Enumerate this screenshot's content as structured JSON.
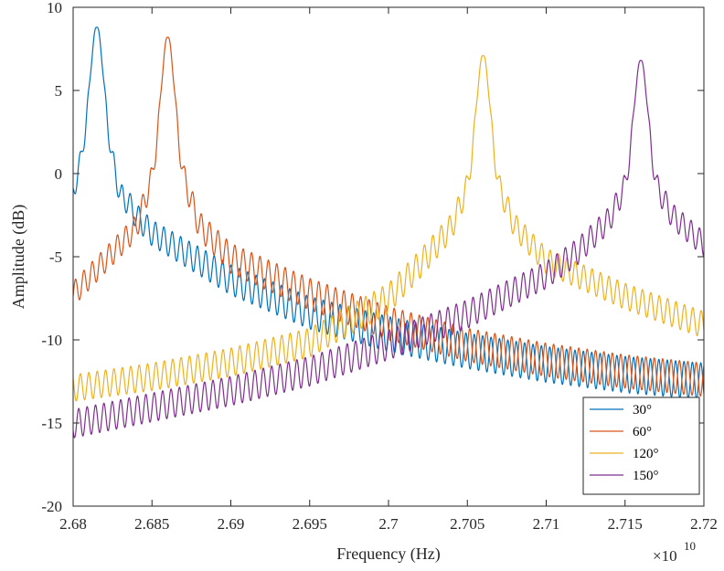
{
  "chart_data": {
    "type": "line",
    "xlabel": "Frequency (Hz)",
    "ylabel": "Amplitude (dB)",
    "x_multiplier_label": "×10",
    "x_multiplier_exponent": "10",
    "xlim": [
      2.68,
      2.72
    ],
    "ylim": [
      -20,
      10
    ],
    "xticks": [
      "2.68",
      "2.685",
      "2.69",
      "2.695",
      "2.7",
      "2.705",
      "2.71",
      "2.715",
      "2.72"
    ],
    "yticks": [
      "10",
      "5",
      "0",
      "-5",
      "-10",
      "-15",
      "-20"
    ],
    "grid": false,
    "legend_position": "bottom-right",
    "x_period": 0.000532,
    "series": [
      {
        "name": "30°",
        "color": "#0072BD",
        "peak_x": 2.6815,
        "peak_y": 8.8,
        "envelope": [
          [
            2.68,
            -0.5
          ],
          [
            2.6805,
            1.5
          ],
          [
            2.6815,
            8.8
          ],
          [
            2.6825,
            1.5
          ],
          [
            2.683,
            -0.6
          ],
          [
            2.6835,
            -1.0
          ],
          [
            2.684,
            -1.8
          ],
          [
            2.685,
            -2.8
          ],
          [
            2.69,
            -5.5
          ],
          [
            2.695,
            -7.4
          ],
          [
            2.7,
            -8.6
          ],
          [
            2.705,
            -9.6
          ],
          [
            2.71,
            -10.4
          ],
          [
            2.715,
            -11.0
          ],
          [
            2.72,
            -11.4
          ]
        ],
        "ripple": [
          [
            2.68,
            1.3
          ],
          [
            2.684,
            1.5
          ],
          [
            2.69,
            1.8
          ],
          [
            2.7,
            2.1
          ],
          [
            2.72,
            2.2
          ]
        ]
      },
      {
        "name": "60°",
        "color": "#D95319",
        "peak_x": 2.686,
        "peak_y": 8.2,
        "envelope": [
          [
            2.68,
            -6.5
          ],
          [
            2.683,
            -3.5
          ],
          [
            2.684,
            -2.5
          ],
          [
            2.685,
            0.5
          ],
          [
            2.686,
            8.2
          ],
          [
            2.687,
            0.6
          ],
          [
            2.688,
            -2.3
          ],
          [
            2.69,
            -4.2
          ],
          [
            2.695,
            -6.3
          ],
          [
            2.7,
            -8.0
          ],
          [
            2.705,
            -9.3
          ],
          [
            2.71,
            -10.2
          ],
          [
            2.715,
            -10.9
          ],
          [
            2.72,
            -11.4
          ]
        ],
        "ripple": [
          [
            2.68,
            1.5
          ],
          [
            2.686,
            1.5
          ],
          [
            2.69,
            1.8
          ],
          [
            2.7,
            2.0
          ],
          [
            2.72,
            2.0
          ]
        ]
      },
      {
        "name": "120°",
        "color": "#EDB120",
        "peak_x": 2.706,
        "peak_y": 7.1,
        "envelope": [
          [
            2.68,
            -12.1
          ],
          [
            2.685,
            -11.4
          ],
          [
            2.69,
            -10.5
          ],
          [
            2.695,
            -9.3
          ],
          [
            2.7,
            -6.6
          ],
          [
            2.702,
            -4.6
          ],
          [
            2.704,
            -2.4
          ],
          [
            2.705,
            0.0
          ],
          [
            2.706,
            7.1
          ],
          [
            2.707,
            0.0
          ],
          [
            2.708,
            -2.4
          ],
          [
            2.71,
            -4.5
          ],
          [
            2.715,
            -6.6
          ],
          [
            2.72,
            -8.3
          ]
        ],
        "ripple": [
          [
            2.68,
            1.6
          ],
          [
            2.7,
            1.8
          ],
          [
            2.706,
            1.5
          ],
          [
            2.72,
            1.6
          ]
        ]
      },
      {
        "name": "150°",
        "color": "#7E2F8E",
        "peak_x": 2.716,
        "peak_y": 6.8,
        "envelope": [
          [
            2.68,
            -14.2
          ],
          [
            2.685,
            -13.2
          ],
          [
            2.69,
            -12.2
          ],
          [
            2.695,
            -11.0
          ],
          [
            2.7,
            -9.4
          ],
          [
            2.705,
            -7.6
          ],
          [
            2.71,
            -5.3
          ],
          [
            2.712,
            -3.9
          ],
          [
            2.714,
            -2.0
          ],
          [
            2.715,
            0.0
          ],
          [
            2.716,
            6.8
          ],
          [
            2.717,
            0.0
          ],
          [
            2.718,
            -1.8
          ],
          [
            2.72,
            -3.5
          ]
        ],
        "ripple": [
          [
            2.68,
            1.7
          ],
          [
            2.7,
            1.8
          ],
          [
            2.716,
            1.5
          ],
          [
            2.72,
            1.5
          ]
        ]
      }
    ]
  }
}
